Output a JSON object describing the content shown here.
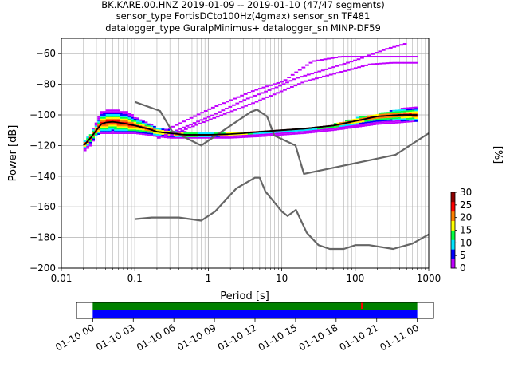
{
  "chart_data": [
    {
      "type": "heatmap",
      "title_lines": [
        "BK.KARE.00.HNZ   2019-01-09 -- 2019-01-10  (47/47 segments)",
        "sensor_type FortisDCto100Hz(4gmax) sensor_sn TF481",
        "datalogger_type GuralpMinimus+ datalogger_sn MINP-DF59"
      ],
      "xlabel": "Period [s]",
      "ylabel": "Power [dB]",
      "xscale": "log",
      "xlim": [
        0.01,
        1000
      ],
      "ylim": [
        -200,
        -50
      ],
      "xticks": [
        0.01,
        0.1,
        1,
        10,
        100,
        1000
      ],
      "xtick_labels": [
        "0.01",
        "0.1",
        "1",
        "10",
        "100",
        "1000"
      ],
      "yticks": [
        -200,
        -180,
        -160,
        -140,
        -120,
        -100,
        -80,
        -60
      ],
      "ytick_labels": [
        "−200",
        "−180",
        "−160",
        "−140",
        "−120",
        "−100",
        "−80",
        "−60"
      ],
      "grid": true,
      "colorbar": {
        "label": "[%]",
        "range": [
          0,
          30
        ],
        "ticks": [
          0,
          5,
          10,
          15,
          20,
          25,
          30
        ],
        "tick_labels": [
          "0",
          "5",
          "10",
          "15",
          "20",
          "25",
          "30"
        ],
        "colormap": [
          "#ffffff",
          "#c000ff",
          "#0000ff",
          "#00e5ff",
          "#00ff40",
          "#ffff00",
          "#ff8000",
          "#ff0000",
          "#900000"
        ]
      },
      "nlnm": {
        "x": [
          0.1,
          0.17,
          0.4,
          0.8,
          1.24,
          2.4,
          4.3,
          5.0,
          6.0,
          10,
          12,
          15.6,
          21.9,
          31.6,
          45,
          70,
          101,
          154,
          328,
          600,
          1000
        ],
        "y": [
          -168,
          -167,
          -167,
          -169,
          -163,
          -148,
          -141,
          -141,
          -150,
          -163,
          -166,
          -162,
          -177,
          -185,
          -187.5,
          -187.5,
          -185,
          -185,
          -187.5,
          -184,
          -178
        ]
      },
      "nhnm": {
        "x": [
          0.1,
          0.22,
          0.32,
          0.8,
          3.8,
          4.6,
          6.3,
          7.9,
          15.4,
          20,
          354.8,
          1000
        ],
        "y": [
          -91.5,
          -97.4,
          -110.5,
          -120,
          -98,
          -96.5,
          -101,
          -113.5,
          -120,
          -138.5,
          -126,
          -112
        ]
      },
      "mode_curve": {
        "x": [
          0.02,
          0.023,
          0.026,
          0.03,
          0.035,
          0.04,
          0.05,
          0.06,
          0.08,
          0.1,
          0.15,
          0.2,
          0.3,
          0.5,
          1,
          2,
          3,
          5,
          10,
          20,
          50,
          100,
          200,
          400,
          700
        ],
        "y": [
          -120,
          -117,
          -114,
          -110,
          -106,
          -105,
          -104.5,
          -105,
          -106,
          -107,
          -109,
          -111,
          -112,
          -113,
          -113,
          -112.5,
          -112,
          -111,
          -110,
          -109,
          -107,
          -104,
          -101,
          -100,
          -100
        ]
      },
      "psd_band": {
        "x": [
          0.02,
          0.025,
          0.03,
          0.035,
          0.04,
          0.05,
          0.06,
          0.08,
          0.1,
          0.15,
          0.2,
          0.3,
          0.5,
          1,
          2,
          5,
          10,
          20,
          50,
          100,
          200,
          400,
          700
        ],
        "y_low": [
          -124,
          -120,
          -113,
          -112,
          -112,
          -112,
          -112,
          -112,
          -112,
          -113,
          -114,
          -115,
          -115,
          -115,
          -115,
          -114,
          -113,
          -112,
          -110,
          -108,
          -106,
          -105,
          -104
        ],
        "y_high": [
          -118,
          -112,
          -104,
          -98,
          -97,
          -97,
          -97,
          -98,
          -101,
          -105,
          -108,
          -110,
          -111,
          -112,
          -112,
          -111,
          -110,
          -109,
          -106,
          -102,
          -99,
          -96,
          -94
        ]
      },
      "spurious_traces": [
        {
          "x": [
            0.25,
            1,
            4,
            10,
            15,
            25,
            60,
            100,
            200,
            700
          ],
          "y": [
            -110,
            -96,
            -84,
            -78,
            -72,
            -65,
            -62,
            -62,
            -62,
            -62
          ]
        },
        {
          "x": [
            0.2,
            1,
            3,
            8,
            15,
            40,
            100,
            250,
            500
          ],
          "y": [
            -115,
            -101,
            -90,
            -82,
            -76,
            -70,
            -64,
            -57,
            -53
          ]
        },
        {
          "x": [
            0.3,
            1,
            4,
            10,
            20,
            60,
            150,
            300,
            700
          ],
          "y": [
            -113,
            -103,
            -92,
            -84,
            -78,
            -72,
            -67,
            -66,
            -66
          ]
        }
      ]
    },
    {
      "type": "timeline",
      "tick_labels": [
        "01-10 00",
        "01-10 03",
        "01-10 06",
        "01-10 09",
        "01-10 12",
        "01-10 15",
        "01-10 18",
        "01-10 21",
        "01-11 00"
      ],
      "xlim_hours": [
        -1.2,
        25.2
      ],
      "data_range_hours": [
        0,
        24
      ],
      "segments_color": "#0000ff",
      "coverage_color": "#008000",
      "gap_marker_hours": [
        19.9
      ],
      "gap_color": "#ff0000"
    }
  ]
}
